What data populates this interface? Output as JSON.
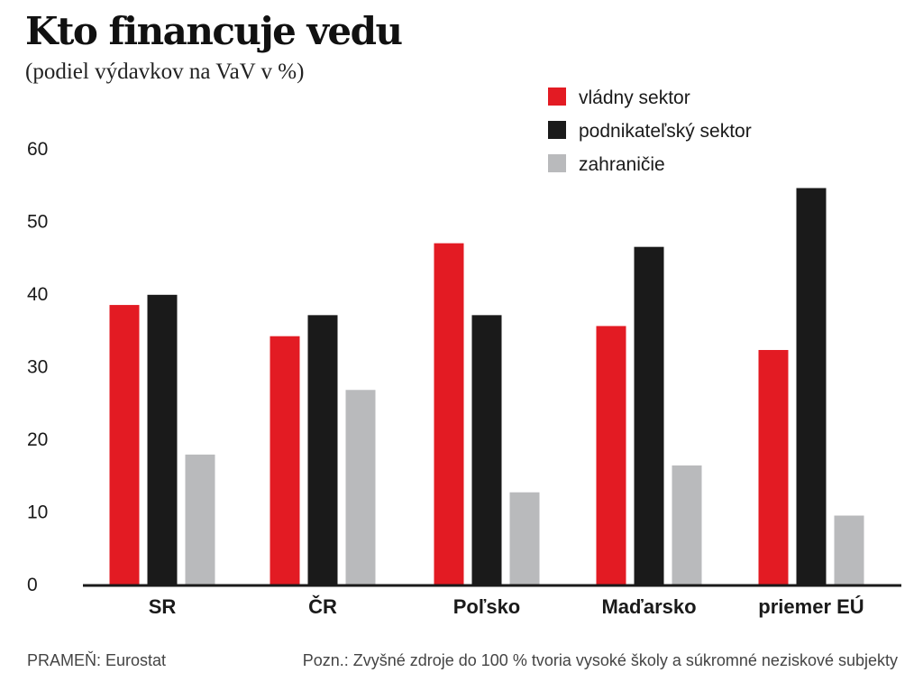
{
  "header": {
    "title": "Kto financuje vedu",
    "subtitle": "(podiel výdavkov na VaV v %)"
  },
  "footer": {
    "source": "PRAMEŇ: Eurostat",
    "note": "Pozn.: Zvyšné zdroje do 100 % tvoria vysoké školy a súkromné neziskové subjekty"
  },
  "chart_data": {
    "type": "bar",
    "title": "Kto financuje vedu",
    "subtitle": "(podiel výdavkov na VaV v %)",
    "xlabel": "",
    "ylabel": "",
    "ylim": [
      0,
      60
    ],
    "yticks": [
      0,
      10,
      20,
      30,
      40,
      50,
      60
    ],
    "grid": false,
    "legend_position": "top-right",
    "categories": [
      "SR",
      "ČR",
      "Poľsko",
      "Maďarsko",
      "priemer EÚ"
    ],
    "series": [
      {
        "name": "vládny sektor",
        "color": "#e31b23",
        "values": [
          38.5,
          34.2,
          47.0,
          35.6,
          32.3
        ]
      },
      {
        "name": "podnikateľský sektor",
        "color": "#1a1a1a",
        "values": [
          39.9,
          37.1,
          37.1,
          46.5,
          54.6
        ]
      },
      {
        "name": "zahraničie",
        "color": "#b9babc",
        "values": [
          17.9,
          26.8,
          12.7,
          16.4,
          9.5
        ]
      }
    ]
  }
}
